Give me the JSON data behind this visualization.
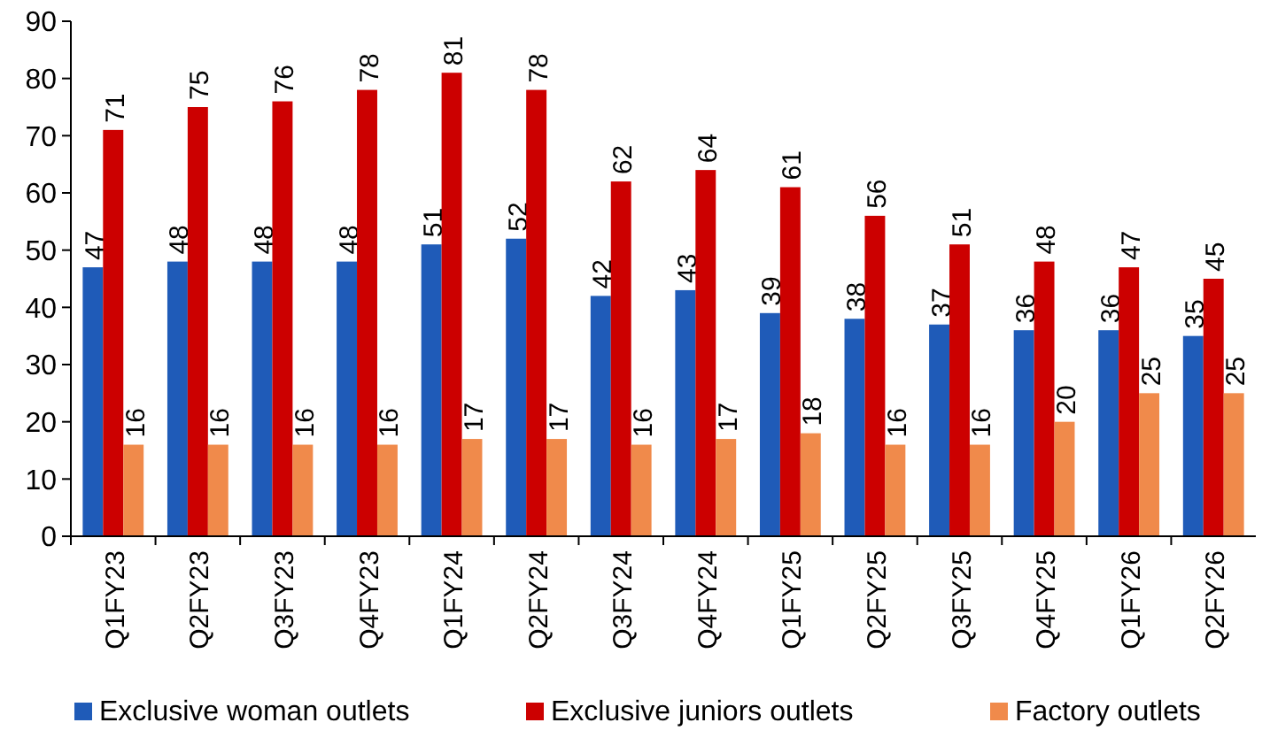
{
  "chart_data": {
    "type": "bar",
    "categories": [
      "Q1FY23",
      "Q2FY23",
      "Q3FY23",
      "Q4FY23",
      "Q1FY24",
      "Q2FY24",
      "Q3FY24",
      "Q4FY24",
      "Q1FY25",
      "Q2FY25",
      "Q3FY25",
      "Q4FY25",
      "Q1FY26",
      "Q2FY26"
    ],
    "series": [
      {
        "name": "Exclusive woman outlets",
        "color": "#1f5bb8",
        "values": [
          47,
          48,
          48,
          48,
          51,
          52,
          42,
          43,
          39,
          38,
          37,
          36,
          36,
          35
        ]
      },
      {
        "name": "Exclusive juniors outlets",
        "color": "#cc0000",
        "values": [
          71,
          75,
          76,
          78,
          81,
          78,
          62,
          64,
          61,
          56,
          51,
          48,
          47,
          45
        ]
      },
      {
        "name": "Factory outlets",
        "color": "#f08a4b",
        "values": [
          16,
          16,
          16,
          16,
          17,
          17,
          16,
          17,
          18,
          16,
          16,
          20,
          25,
          25
        ]
      }
    ],
    "ylim": [
      0,
      90
    ],
    "yticks": [
      0,
      10,
      20,
      30,
      40,
      50,
      60,
      70,
      80,
      90
    ],
    "grid": false,
    "legend": "bottom",
    "data_labels": true
  }
}
